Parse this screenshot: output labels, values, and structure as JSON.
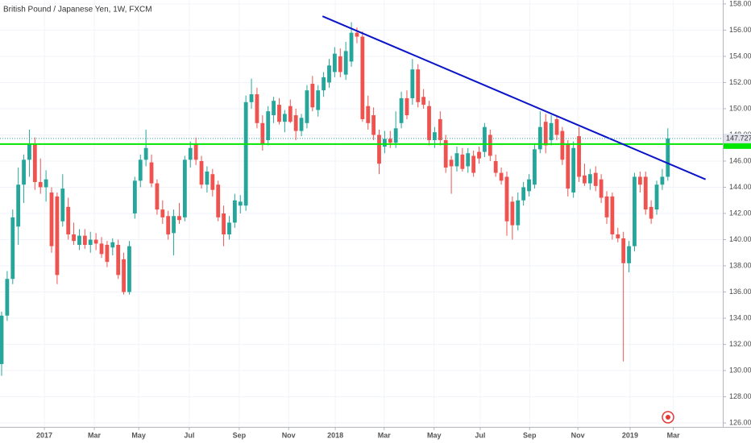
{
  "chart_data": {
    "type": "candlestick",
    "title": "British Pound / Japanese Yen, 1W, FXCM",
    "categories": [
      null,
      null,
      null,
      null,
      null,
      null,
      null,
      null,
      null,
      null,
      null,
      null,
      null,
      null,
      null,
      null,
      null,
      null,
      null,
      null,
      null,
      null,
      null,
      null,
      null,
      null,
      null,
      null,
      null,
      null,
      null,
      null,
      null,
      null,
      null,
      null,
      null,
      null,
      null,
      null,
      null,
      null,
      null,
      null,
      null,
      null,
      null,
      null,
      null,
      null,
      null,
      null,
      null,
      null,
      null,
      null,
      null,
      null,
      null,
      null,
      null,
      null,
      null,
      null,
      null,
      null,
      null,
      null,
      null,
      null,
      null,
      null,
      null,
      null,
      null,
      null,
      null,
      null,
      null,
      null,
      null,
      null,
      null,
      null,
      null,
      null,
      null,
      null,
      null,
      null,
      null,
      null,
      null,
      null,
      null,
      null,
      null,
      null,
      null,
      null,
      null,
      null,
      null,
      null,
      null,
      null,
      null,
      null,
      null,
      null,
      null,
      null,
      null,
      null,
      null,
      null,
      null,
      null,
      null,
      null,
      null
    ],
    "open": [
      130.5,
      134.2,
      137.0,
      141.0,
      144.2,
      146.1,
      147.3,
      144.4,
      144.0,
      143.6,
      143.3,
      141.4,
      142.5,
      140.4,
      139.6,
      140.3,
      139.6,
      140.0,
      139.7,
      139.6,
      139.4,
      139.6,
      138.5,
      136.0,
      142.0,
      144.5,
      146.1,
      145.9,
      144.3,
      142.3,
      141.8,
      140.5,
      141.8,
      141.7,
      146.1,
      147.3,
      146.0,
      144.2,
      145.0,
      144.2,
      142.0,
      140.4,
      141.3,
      142.6,
      142.6,
      150.5,
      151.1,
      148.9,
      147.6,
      149.5,
      150.3,
      149.0,
      150.2,
      149.5,
      148.3,
      148.9,
      151.9,
      149.9,
      151.4,
      152.0,
      152.8,
      154.0,
      152.6,
      153.6,
      155.8,
      155.5,
      150.2,
      149.5,
      148.0,
      147.1,
      147.7,
      147.4,
      148.9,
      150.8,
      150.8,
      153.0,
      150.9,
      150.2,
      147.6,
      149.2,
      147.6,
      146.1,
      145.6,
      146.5,
      145.6,
      146.4,
      146.7,
      146.7,
      148.0,
      146.0,
      145.1,
      144.8,
      142.9,
      141.1,
      143.0,
      143.7,
      144.2,
      146.9,
      149.0,
      147.6,
      149.2,
      148.3,
      147.3,
      143.6,
      147.9,
      144.9,
      144.3,
      145.1,
      144.6,
      143.3,
      143.3,
      140.4,
      140.1,
      138.2,
      139.5,
      144.8,
      144.8,
      142.5,
      142.3,
      144.2,
      144.8
    ],
    "high": [
      134.5,
      137.6,
      142.3,
      145.5,
      146.5,
      148.4,
      147.8,
      146.2,
      145.3,
      144.0,
      143.6,
      145.0,
      143.2,
      141.3,
      140.8,
      140.8,
      140.6,
      140.5,
      140.2,
      139.9,
      140.1,
      140.0,
      139.0,
      139.9,
      144.8,
      146.5,
      148.4,
      146.5,
      144.6,
      143.0,
      142.2,
      142.3,
      142.8,
      146.4,
      147.5,
      147.8,
      146.4,
      145.6,
      145.4,
      144.5,
      142.6,
      141.8,
      143.5,
      143.4,
      151.0,
      152.3,
      151.6,
      149.5,
      150.2,
      150.9,
      150.8,
      149.9,
      150.7,
      150.0,
      149.6,
      151.8,
      152.5,
      151.8,
      152.8,
      153.8,
      154.7,
      154.6,
      155.1,
      156.6,
      156.2,
      155.9,
      151.0,
      150.1,
      148.4,
      148.3,
      148.3,
      149.8,
      151.3,
      151.4,
      153.8,
      153.4,
      151.5,
      150.6,
      148.6,
      149.8,
      148.0,
      146.4,
      147.1,
      147.0,
      147.0,
      146.8,
      147.1,
      148.9,
      148.4,
      146.5,
      145.5,
      145.2,
      143.3,
      143.6,
      144.4,
      145.0,
      147.3,
      149.8,
      149.6,
      149.5,
      149.5,
      148.6,
      147.6,
      147.5,
      148.6,
      145.8,
      145.4,
      145.6,
      145.0,
      143.7,
      143.6,
      140.9,
      140.6,
      139.9,
      145.1,
      145.2,
      145.2,
      143.0,
      144.5,
      145.4,
      148.5
    ],
    "low": [
      129.6,
      133.8,
      136.6,
      139.6,
      142.8,
      144.8,
      143.8,
      143.5,
      142.9,
      139.0,
      136.6,
      141.0,
      140.0,
      139.6,
      139.2,
      139.3,
      139.0,
      139.2,
      138.6,
      137.9,
      138.8,
      137.0,
      135.8,
      135.8,
      141.6,
      144.0,
      145.6,
      144.0,
      141.9,
      141.2,
      140.0,
      138.8,
      141.2,
      141.4,
      145.5,
      145.7,
      143.9,
      143.6,
      143.3,
      141.4,
      139.5,
      140.0,
      140.9,
      142.0,
      142.2,
      150.0,
      148.5,
      146.8,
      147.2,
      148.9,
      148.8,
      148.2,
      148.9,
      147.6,
      147.9,
      148.5,
      149.8,
      149.4,
      150.9,
      151.6,
      152.4,
      152.4,
      152.2,
      153.2,
      155.0,
      149.0,
      148.4,
      147.6,
      145.0,
      146.6,
      147.0,
      147.0,
      148.5,
      149.2,
      150.3,
      150.1,
      150.0,
      147.2,
      147.0,
      147.2,
      145.1,
      143.5,
      145.2,
      145.2,
      145.1,
      144.8,
      145.8,
      146.3,
      146.0,
      144.8,
      144.2,
      140.3,
      140.0,
      140.7,
      142.6,
      143.3,
      143.9,
      146.6,
      146.6,
      147.2,
      147.6,
      145.7,
      143.3,
      143.2,
      144.4,
      144.1,
      143.8,
      143.7,
      142.8,
      141.2,
      140.0,
      139.8,
      130.7,
      137.5,
      139.1,
      143.6,
      141.9,
      141.2,
      141.9,
      143.8,
      144.5
    ],
    "close": [
      134.2,
      137.0,
      141.7,
      144.2,
      146.1,
      147.3,
      144.4,
      144.0,
      144.6,
      139.5,
      137.3,
      143.9,
      140.4,
      139.9,
      140.3,
      139.6,
      140.0,
      139.7,
      138.9,
      138.3,
      139.8,
      137.3,
      136.0,
      139.5,
      144.5,
      146.1,
      147.0,
      144.3,
      142.3,
      141.7,
      140.4,
      141.8,
      141.5,
      146.1,
      147.0,
      146.1,
      144.2,
      145.2,
      143.8,
      141.7,
      140.4,
      141.3,
      143.0,
      142.9,
      150.5,
      151.1,
      148.9,
      147.3,
      149.8,
      150.6,
      149.0,
      149.6,
      149.0,
      148.3,
      149.3,
      151.4,
      150.1,
      151.4,
      152.4,
      153.3,
      154.2,
      152.8,
      154.4,
      155.8,
      155.5,
      149.2,
      148.9,
      148.0,
      145.8,
      147.7,
      147.4,
      148.5,
      150.8,
      149.5,
      153.0,
      150.5,
      150.3,
      147.6,
      148.2,
      147.6,
      145.5,
      145.6,
      146.6,
      145.4,
      146.6,
      145.1,
      146.2,
      148.6,
      146.4,
      145.1,
      144.5,
      141.4,
      141.1,
      143.0,
      144.0,
      144.6,
      146.9,
      148.6,
      147.2,
      148.9,
      148.0,
      146.1,
      143.9,
      147.0,
      144.8,
      144.3,
      145.0,
      144.1,
      143.2,
      141.7,
      140.4,
      140.1,
      138.2,
      139.5,
      144.8,
      144.2,
      142.3,
      141.6,
      144.2,
      144.8,
      147.727
    ],
    "up_color": "#26a69a",
    "down_color": "#ef5350",
    "xlim": [
      -0.29,
      129.9
    ],
    "ylim": [
      125.7,
      158.3
    ],
    "xticks": [
      {
        "value": 7.7,
        "label": "2017"
      },
      {
        "value": 16.7,
        "label": "Mar"
      },
      {
        "value": 24.7,
        "label": "May"
      },
      {
        "value": 33.8,
        "label": "Jul"
      },
      {
        "value": 42.8,
        "label": "Sep"
      },
      {
        "value": 51.7,
        "label": "Nov"
      },
      {
        "value": 60.1,
        "label": "2018"
      },
      {
        "value": 68.9,
        "label": "Mar"
      },
      {
        "value": 77.9,
        "label": "May"
      },
      {
        "value": 86.2,
        "label": "Jul"
      },
      {
        "value": 95.1,
        "label": "Sep"
      },
      {
        "value": 103.8,
        "label": "Nov"
      },
      {
        "value": 113.2,
        "label": "2019"
      },
      {
        "value": 121.0,
        "label": "Mar"
      }
    ],
    "yticks": [
      {
        "value": 126,
        "label": "126.000"
      },
      {
        "value": 128,
        "label": "128.000"
      },
      {
        "value": 130,
        "label": "130.000"
      },
      {
        "value": 132,
        "label": "132.000"
      },
      {
        "value": 134,
        "label": "134.000"
      },
      {
        "value": 136,
        "label": "136.000"
      },
      {
        "value": 138,
        "label": "138.000"
      },
      {
        "value": 140,
        "label": "140.000"
      },
      {
        "value": 142,
        "label": "142.000"
      },
      {
        "value": 144,
        "label": "144.000"
      },
      {
        "value": 146,
        "label": "146.000"
      },
      {
        "value": 148,
        "label": "148.000"
      },
      {
        "value": 150,
        "label": "150.000"
      },
      {
        "value": 152,
        "label": "152.000"
      },
      {
        "value": 154,
        "label": "154.000"
      },
      {
        "value": 156,
        "label": "156.000"
      },
      {
        "value": 158,
        "label": "158.000"
      }
    ],
    "grid": true,
    "last_price_label": "147.727",
    "hline": {
      "value": 147.3,
      "color": "#00e600"
    },
    "trendline": {
      "x": [
        57.8,
        126.8
      ],
      "y": [
        157.06,
        144.6
      ],
      "color": "#0a14c8"
    }
  }
}
